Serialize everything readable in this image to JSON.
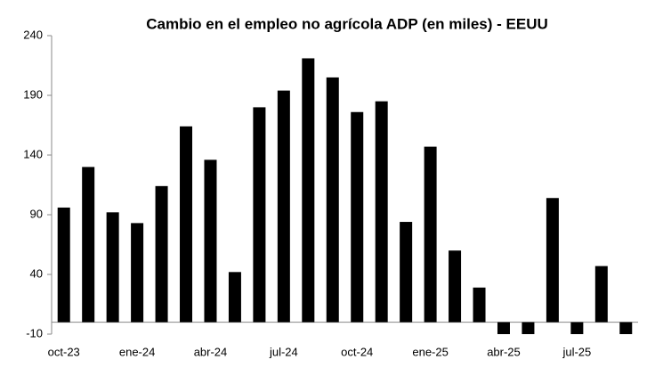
{
  "chart_data": {
    "type": "bar",
    "title": "Cambio  en el empleo no agrícola ADP (en miles) - EEUU",
    "categories": [
      "oct-23",
      null,
      null,
      "ene-24",
      null,
      null,
      "abr-24",
      null,
      null,
      "jul-24",
      null,
      null,
      "oct-24",
      null,
      null,
      "ene-25",
      null,
      null,
      "abr-25",
      null,
      null,
      "jul-25",
      null,
      null
    ],
    "values": [
      96,
      130,
      92,
      83,
      114,
      164,
      136,
      42,
      180,
      194,
      221,
      205,
      176,
      185,
      84,
      147,
      60,
      29,
      -10,
      -10,
      104,
      -10,
      47,
      -10
    ],
    "color": "#000000",
    "ylim": [
      -10,
      240
    ],
    "yticks": [
      -10,
      40,
      90,
      140,
      190,
      240
    ],
    "grid": false
  }
}
